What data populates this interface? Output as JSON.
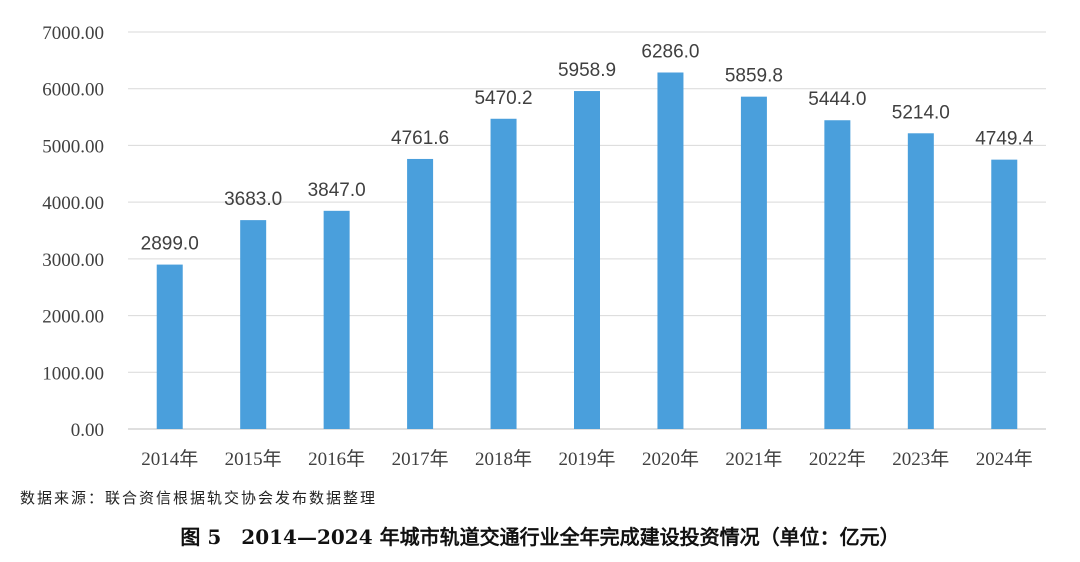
{
  "chart_data": {
    "type": "bar",
    "categories": [
      "2014年",
      "2015年",
      "2016年",
      "2017年",
      "2018年",
      "2019年",
      "2020年",
      "2021年",
      "2022年",
      "2023年",
      "2024年"
    ],
    "values": [
      2899.0,
      3683.0,
      3847.0,
      4761.6,
      5470.2,
      5958.9,
      6286.0,
      5859.8,
      5444.0,
      5214.0,
      4749.4
    ],
    "data_labels": [
      "2899.0",
      "3683.0",
      "3847.0",
      "4761.6",
      "5470.2",
      "5958.9",
      "6286.0",
      "5859.8",
      "5444.0",
      "5214.0",
      "4749.4"
    ],
    "yticks": [
      "0.00",
      "1000.00",
      "2000.00",
      "3000.00",
      "4000.00",
      "5000.00",
      "6000.00",
      "7000.00"
    ],
    "ylim": [
      0,
      7000
    ],
    "grid": true,
    "bar_color": "#4a9fdc",
    "gridline_color": "#d9d9d9"
  },
  "source_note": "数据来源：联合资信根据轨交协会发布数据整理",
  "caption": "图 5　2014—2024 年城市轨道交通行业全年完成建设投资情况（单位：亿元）"
}
